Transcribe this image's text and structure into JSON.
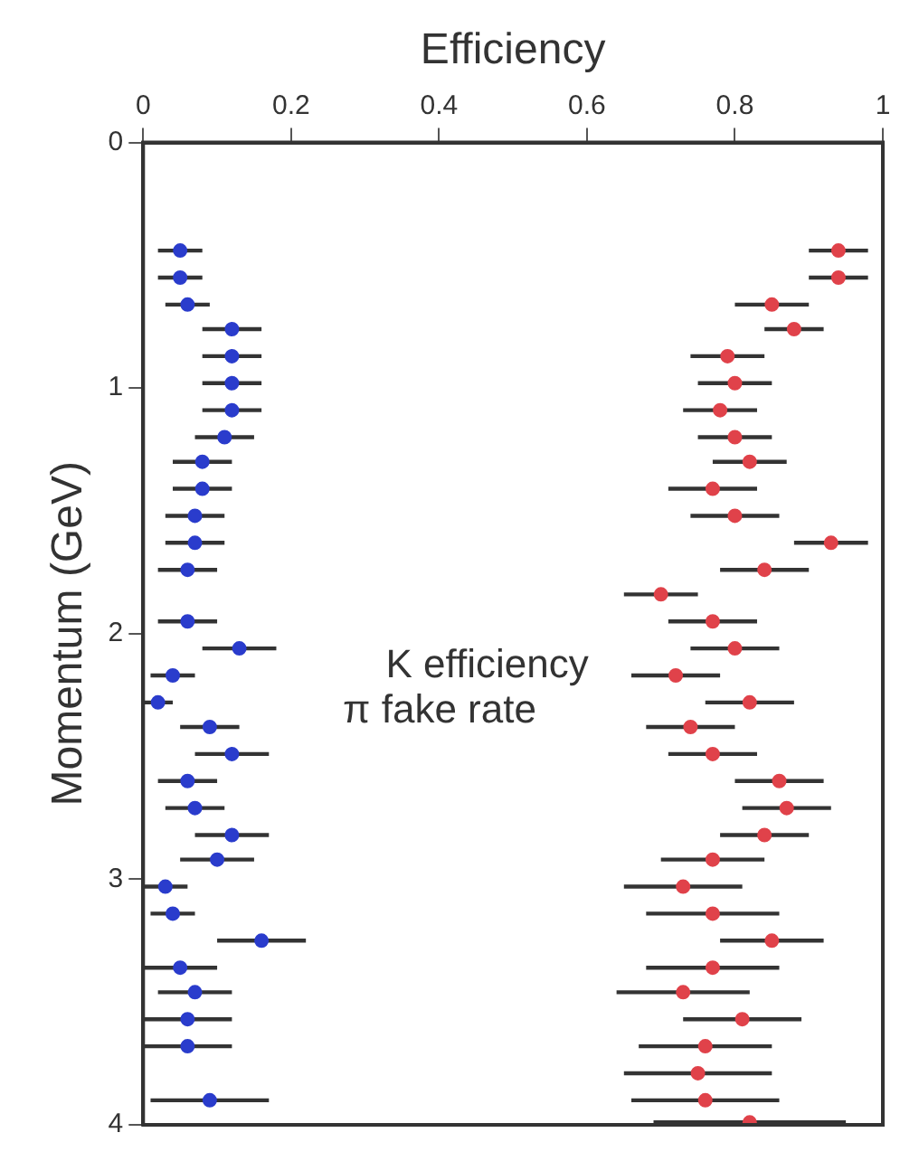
{
  "chart_data": {
    "type": "scatter",
    "xlabel": "Efficiency",
    "ylabel": "Momentum (GeV)",
    "xlim": [
      0,
      1
    ],
    "xticks": [
      0,
      0.2,
      0.4,
      0.6,
      0.8,
      1
    ],
    "ylim": [
      4,
      0
    ],
    "yticks": [
      0,
      1,
      2,
      3,
      4
    ],
    "grid": false,
    "legend": false,
    "marker": "circle",
    "series": [
      {
        "name": "K efficiency",
        "color": "#e0424a",
        "values": [
          0.44,
          0.55,
          0.66,
          0.76,
          0.87,
          0.98,
          1.09,
          1.2,
          1.3,
          1.41,
          1.52,
          1.63,
          1.74,
          1.84,
          1.95,
          2.06,
          2.17,
          2.28,
          2.38,
          2.49,
          2.6,
          2.71,
          2.82,
          2.92,
          3.03,
          3.14,
          3.25,
          3.36,
          3.46,
          3.57,
          3.68,
          3.79,
          3.9,
          3.99
        ],
        "x": [
          0.94,
          0.94,
          0.85,
          0.88,
          0.79,
          0.8,
          0.78,
          0.8,
          0.82,
          0.77,
          0.8,
          0.93,
          0.84,
          0.7,
          0.77,
          0.8,
          0.72,
          0.82,
          0.74,
          0.77,
          0.86,
          0.87,
          0.84,
          0.77,
          0.73,
          0.77,
          0.85,
          0.77,
          0.73,
          0.81,
          0.76,
          0.75,
          0.76,
          0.82
        ],
        "xerrors": [
          0.04,
          0.04,
          0.05,
          0.04,
          0.05,
          0.05,
          0.05,
          0.05,
          0.05,
          0.06,
          0.06,
          0.05,
          0.06,
          0.05,
          0.06,
          0.06,
          0.06,
          0.06,
          0.06,
          0.06,
          0.06,
          0.06,
          0.06,
          0.07,
          0.08,
          0.09,
          0.07,
          0.09,
          0.09,
          0.08,
          0.09,
          0.1,
          0.1,
          0.13
        ]
      },
      {
        "name": "π fake rate",
        "color": "#2a3ccc",
        "values": [
          0.44,
          0.55,
          0.66,
          0.76,
          0.87,
          0.98,
          1.09,
          1.2,
          1.3,
          1.41,
          1.52,
          1.63,
          1.74,
          1.95,
          2.06,
          2.17,
          2.28,
          2.38,
          2.49,
          2.6,
          2.71,
          2.82,
          2.92,
          3.03,
          3.14,
          3.25,
          3.36,
          3.46,
          3.57,
          3.68,
          3.9
        ],
        "x": [
          0.05,
          0.05,
          0.06,
          0.12,
          0.12,
          0.12,
          0.12,
          0.11,
          0.08,
          0.08,
          0.07,
          0.07,
          0.06,
          0.06,
          0.13,
          0.04,
          0.02,
          0.09,
          0.12,
          0.06,
          0.07,
          0.12,
          0.1,
          0.03,
          0.04,
          0.16,
          0.05,
          0.07,
          0.06,
          0.06,
          0.09
        ],
        "xerrors": [
          0.03,
          0.03,
          0.03,
          0.04,
          0.04,
          0.04,
          0.04,
          0.04,
          0.04,
          0.04,
          0.04,
          0.04,
          0.04,
          0.04,
          0.05,
          0.03,
          0.02,
          0.04,
          0.05,
          0.04,
          0.04,
          0.05,
          0.05,
          0.03,
          0.03,
          0.06,
          0.05,
          0.05,
          0.06,
          0.06,
          0.08
        ]
      }
    ]
  }
}
